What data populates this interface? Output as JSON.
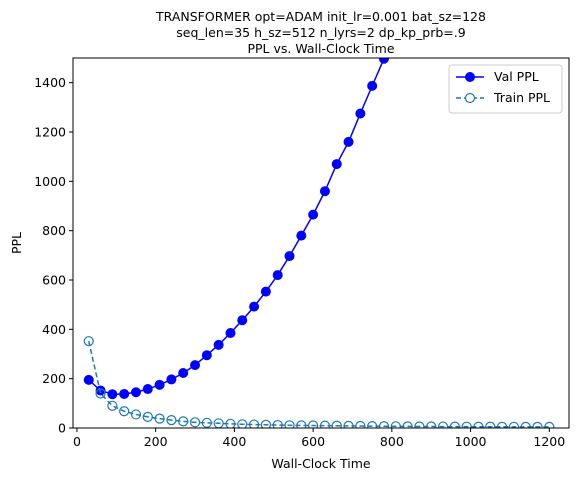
{
  "chart_data": {
    "type": "line",
    "title_lines": [
      "TRANSFORMER opt=ADAM init_lr=0.001 bat_sz=128",
      "seq_len=35 h_sz=512 n_lyrs=2 dp_kp_prb=.9",
      "PPL vs. Wall-Clock Time"
    ],
    "xlabel": "Wall-Clock Time",
    "ylabel": "PPL",
    "xlim": [
      -10,
      1250
    ],
    "ylim": [
      0,
      1500
    ],
    "xticks": [
      0,
      200,
      400,
      600,
      800,
      1000,
      1200
    ],
    "yticks": [
      0,
      200,
      400,
      600,
      800,
      1000,
      1200,
      1400
    ],
    "legend_position": "top-right",
    "grid": false,
    "series": [
      {
        "name": "Val PPL",
        "color": "#0000ff",
        "marker": "filled-circle",
        "line_style": "solid",
        "x": [
          30,
          60,
          90,
          120,
          150,
          180,
          210,
          240,
          270,
          300,
          330,
          360,
          390,
          420,
          450,
          480,
          510,
          540,
          570,
          600,
          630,
          660,
          690,
          720,
          750,
          780
        ],
        "y": [
          195,
          152,
          137,
          138,
          145,
          158,
          175,
          197,
          223,
          255,
          295,
          337,
          385,
          437,
          492,
          553,
          620,
          697,
          780,
          865,
          960,
          1070,
          1160,
          1275,
          1387,
          1497
        ]
      },
      {
        "name": "Train PPL",
        "color": "#1f77b4",
        "marker": "open-circle",
        "line_style": "dashed",
        "x": [
          30,
          60,
          90,
          120,
          150,
          180,
          210,
          240,
          270,
          300,
          330,
          360,
          390,
          420,
          450,
          480,
          510,
          540,
          570,
          600,
          630,
          660,
          690,
          720,
          750,
          780,
          810,
          840,
          870,
          900,
          930,
          960,
          990,
          1020,
          1050,
          1080,
          1110,
          1140,
          1170,
          1200
        ],
        "y": [
          352,
          140,
          90,
          68,
          55,
          45,
          38,
          32,
          27,
          23,
          21,
          19,
          17,
          15,
          14,
          13,
          12,
          11,
          10.5,
          10,
          9.5,
          9,
          8.5,
          8,
          7.5,
          7,
          6.8,
          6.5,
          6.2,
          6,
          5.8,
          5.6,
          5.4,
          5.2,
          5,
          4.9,
          4.8,
          4.7,
          4.6,
          4.5
        ]
      }
    ]
  }
}
